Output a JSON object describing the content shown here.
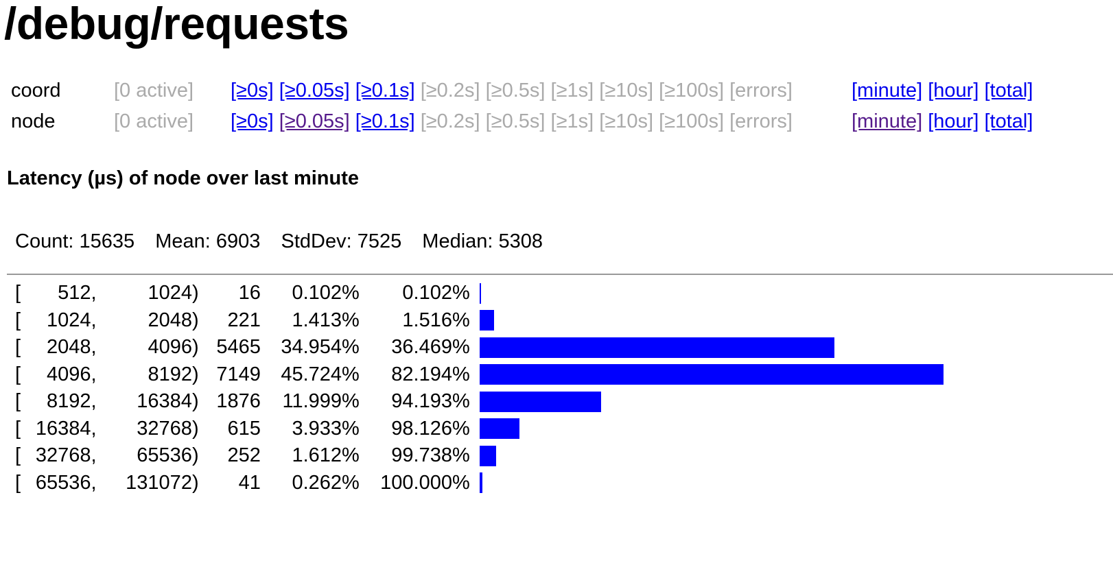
{
  "page": {
    "title": "/debug/requests"
  },
  "families": [
    {
      "name": "coord",
      "active": "[0 active]",
      "buckets": [
        {
          "label": "[≥0s]",
          "state": "link"
        },
        {
          "label": "[≥0.05s]",
          "state": "link"
        },
        {
          "label": "[≥0.1s]",
          "state": "link"
        },
        {
          "label": "[≥0.2s]",
          "state": "dim"
        },
        {
          "label": "[≥0.5s]",
          "state": "dim"
        },
        {
          "label": "[≥1s]",
          "state": "dim"
        },
        {
          "label": "[≥10s]",
          "state": "dim"
        },
        {
          "label": "[≥100s]",
          "state": "dim"
        },
        {
          "label": "[errors]",
          "state": "dim"
        }
      ],
      "periods": [
        {
          "label": "[minute]",
          "state": "link"
        },
        {
          "label": "[hour]",
          "state": "link"
        },
        {
          "label": "[total]",
          "state": "link"
        }
      ]
    },
    {
      "name": "node",
      "active": "[0 active]",
      "buckets": [
        {
          "label": "[≥0s]",
          "state": "link"
        },
        {
          "label": "[≥0.05s]",
          "state": "visited"
        },
        {
          "label": "[≥0.1s]",
          "state": "link"
        },
        {
          "label": "[≥0.2s]",
          "state": "dim"
        },
        {
          "label": "[≥0.5s]",
          "state": "dim"
        },
        {
          "label": "[≥1s]",
          "state": "dim"
        },
        {
          "label": "[≥10s]",
          "state": "dim"
        },
        {
          "label": "[≥100s]",
          "state": "dim"
        },
        {
          "label": "[errors]",
          "state": "dim"
        }
      ],
      "periods": [
        {
          "label": "[minute]",
          "state": "visited"
        },
        {
          "label": "[hour]",
          "state": "link"
        },
        {
          "label": "[total]",
          "state": "link"
        }
      ]
    }
  ],
  "histogram": {
    "title": "Latency (µs) of node over last minute",
    "stats": {
      "count_label": "Count:",
      "count": "15635",
      "mean_label": "Mean:",
      "mean": "6903",
      "stddev_label": "StdDev:",
      "stddev": "7525",
      "median_label": "Median:",
      "median": "5308"
    },
    "max_count": 7149,
    "bar_color": "#0000ff",
    "rows": [
      {
        "open": "[",
        "lo": "512,",
        "hi": "1024)",
        "count": "16",
        "percent": "0.102%",
        "cumulative": "0.102%"
      },
      {
        "open": "[",
        "lo": "1024,",
        "hi": "2048)",
        "count": "221",
        "percent": "1.413%",
        "cumulative": "1.516%"
      },
      {
        "open": "[",
        "lo": "2048,",
        "hi": "4096)",
        "count": "5465",
        "percent": "34.954%",
        "cumulative": "36.469%"
      },
      {
        "open": "[",
        "lo": "4096,",
        "hi": "8192)",
        "count": "7149",
        "percent": "45.724%",
        "cumulative": "82.194%"
      },
      {
        "open": "[",
        "lo": "8192,",
        "hi": "16384)",
        "count": "1876",
        "percent": "11.999%",
        "cumulative": "94.193%"
      },
      {
        "open": "[",
        "lo": "16384,",
        "hi": "32768)",
        "count": "615",
        "percent": "3.933%",
        "cumulative": "98.126%"
      },
      {
        "open": "[",
        "lo": "32768,",
        "hi": "65536)",
        "count": "252",
        "percent": "1.612%",
        "cumulative": "99.738%"
      },
      {
        "open": "[",
        "lo": "65536,",
        "hi": "131072)",
        "count": "41",
        "percent": "0.262%",
        "cumulative": "100.000%"
      }
    ]
  }
}
